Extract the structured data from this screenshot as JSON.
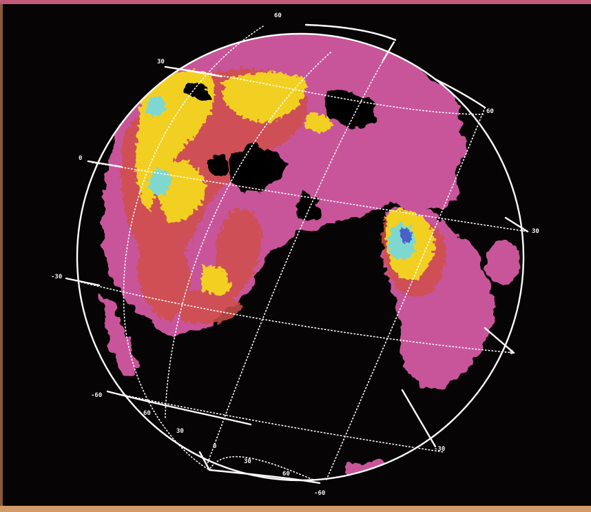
{
  "colors": {
    "frame_top": "#c15a78",
    "frame_bottom": "#d29a6a",
    "frame_left": "#8a5a3a",
    "background": "#060404",
    "grid": "#ffffff",
    "low": "#c8549a",
    "mid": "#d0504a",
    "high": "#f2d020",
    "peak": "#7fd8d0",
    "peak_core": "#4a60c8"
  },
  "grid_labels": [
    {
      "id": "lon-60-top",
      "text": "60"
    },
    {
      "id": "lat-30-nw",
      "text": "30"
    },
    {
      "id": "lon-60-ne",
      "text": "60"
    },
    {
      "id": "lat-0-w",
      "text": "0"
    },
    {
      "id": "lat-30-e",
      "text": "30"
    },
    {
      "id": "lat-neg30-w",
      "text": "-30"
    },
    {
      "id": "lat-0-e",
      "text": "0"
    },
    {
      "id": "lat-neg60-w",
      "text": "-60"
    },
    {
      "id": "lon-60-sw",
      "text": "60"
    },
    {
      "id": "lon-30-sw",
      "text": "30"
    },
    {
      "id": "lon-0-s",
      "text": "0"
    },
    {
      "id": "lon-30-s",
      "text": "30"
    },
    {
      "id": "lon-60-s",
      "text": "60"
    },
    {
      "id": "lat-neg30-se",
      "text": "-30"
    },
    {
      "id": "lat-neg60-s",
      "text": "-60"
    }
  ]
}
